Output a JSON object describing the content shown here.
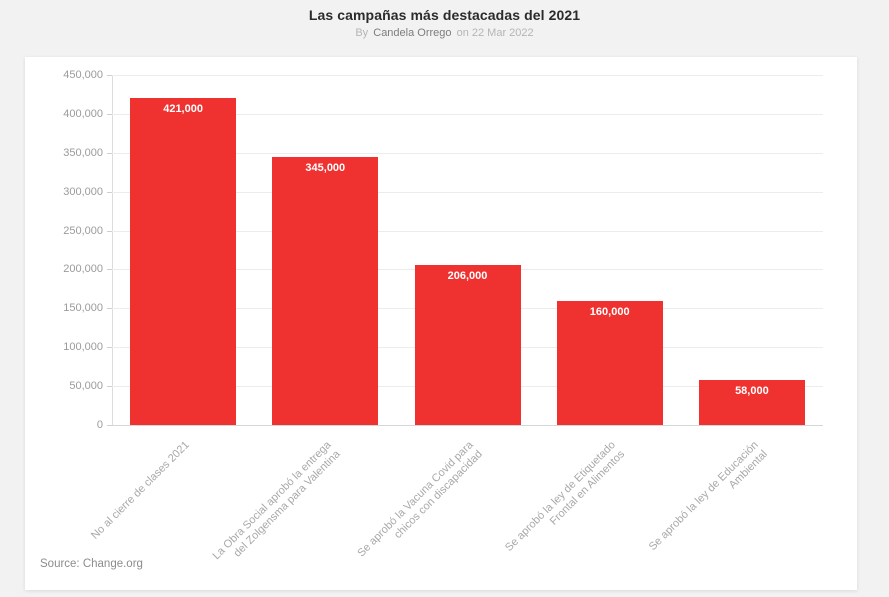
{
  "header": {
    "title": "Las campañas más destacadas del 2021",
    "byline_prefix": "By",
    "byline_author": "Candela Orrego",
    "byline_suffix": "on 22 Mar 2022"
  },
  "footer": {
    "source": "Source: Change.org"
  },
  "chart_data": {
    "type": "bar",
    "title": "Las campañas más destacadas del 2021",
    "categories": [
      "No al cierre de clases 2021",
      "La Obra Social aprobó la entrega\ndel Zolgensma para Valentina",
      "Se aprobó la Vacuna Covid para\nchicos con discapacidad",
      "Se aprobó la ley de Etiquetado\nFrontal en Alimentos",
      "Se aprobó la ley de Educación\nAmbiental"
    ],
    "values": [
      421000,
      345000,
      206000,
      160000,
      58000
    ],
    "value_labels": [
      "421,000",
      "345,000",
      "206,000",
      "160,000",
      "58,000"
    ],
    "xlabel": "",
    "ylabel": "",
    "ylim": [
      0,
      450000
    ],
    "ytick_values": [
      0,
      50000,
      100000,
      150000,
      200000,
      250000,
      300000,
      350000,
      400000,
      450000
    ],
    "ytick_labels": [
      "0",
      "50,000",
      "100,000",
      "150,000",
      "200,000",
      "250,000",
      "300,000",
      "350,000",
      "400,000",
      "450,000"
    ],
    "bar_color": "#ef3130",
    "grid": true,
    "legend": "none",
    "category_label_rotation_deg": -45
  }
}
